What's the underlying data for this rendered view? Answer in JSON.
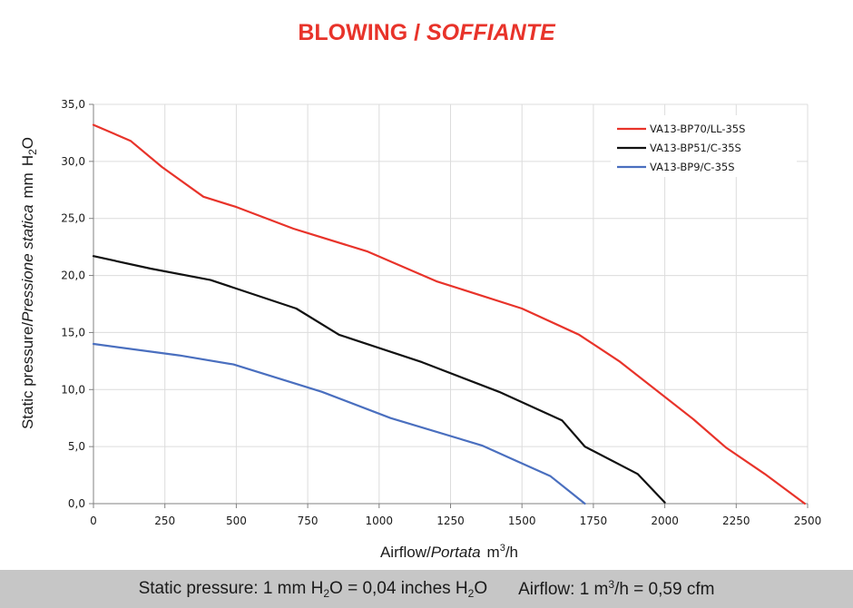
{
  "title": {
    "main": "BLOWING",
    "sep": " / ",
    "italic": "SOFFIANTE"
  },
  "colors": {
    "title": "#e8332a",
    "grid": "#dcdcdc",
    "axis": "#808080",
    "footer_bg": "#c6c6c6"
  },
  "y_axis": {
    "label_plain": "Static pressure",
    "label_sep": "/",
    "label_italic": "Pressione statica",
    "unit_a": "mm",
    "unit_b": "H",
    "unit_sub": "2",
    "unit_c": "O"
  },
  "x_axis": {
    "label_plain": "Airflow",
    "label_sep": "/",
    "label_italic": "Portata",
    "unit_a": "m",
    "unit_sup": "3",
    "unit_b": "/h"
  },
  "footer": {
    "p1": "Static pressure: 1 mm H",
    "s1": "2",
    "p2": "O = 0,04 inches H",
    "s2": "2",
    "p3": "O",
    "p4": "Airflow: 1 m",
    "s3": "3",
    "p5": "/h = 0,59 cfm"
  },
  "chart_data": {
    "type": "line",
    "title": "BLOWING / SOFFIANTE",
    "xlabel": "Airflow / Portata m3/h",
    "ylabel": "Static pressure / Pressione statica mm H2O",
    "xlim": [
      0,
      2500
    ],
    "ylim": [
      0,
      35
    ],
    "x_ticks": [
      0,
      250,
      500,
      750,
      1000,
      1250,
      1500,
      1750,
      2000,
      2250,
      2500
    ],
    "y_ticks": [
      0,
      5,
      10,
      15,
      20,
      25,
      30,
      35
    ],
    "x_tick_labels": [
      "0",
      "250",
      "500",
      "750",
      "1000",
      "1250",
      "1500",
      "1750",
      "2000",
      "2250",
      "2500"
    ],
    "y_tick_labels": [
      "0,0",
      "5,0",
      "10,0",
      "15,0",
      "20,0",
      "25,0",
      "30,0",
      "35,0"
    ],
    "grid": true,
    "legend_position": "top-right",
    "series": [
      {
        "name": "VA13-BP70/LL-35S",
        "color": "#e8332a",
        "points": [
          [
            0,
            33.2
          ],
          [
            130,
            31.8
          ],
          [
            240,
            29.5
          ],
          [
            385,
            26.9
          ],
          [
            500,
            26.0
          ],
          [
            700,
            24.1
          ],
          [
            960,
            22.1
          ],
          [
            1200,
            19.5
          ],
          [
            1500,
            17.1
          ],
          [
            1700,
            14.8
          ],
          [
            1840,
            12.5
          ],
          [
            2100,
            7.4
          ],
          [
            2215,
            4.9
          ],
          [
            2350,
            2.6
          ],
          [
            2490,
            0.0
          ]
        ]
      },
      {
        "name": "VA13-BP51/C-35S",
        "color": "#111111",
        "points": [
          [
            0,
            21.7
          ],
          [
            200,
            20.6
          ],
          [
            410,
            19.6
          ],
          [
            710,
            17.1
          ],
          [
            860,
            14.8
          ],
          [
            1150,
            12.4
          ],
          [
            1420,
            9.8
          ],
          [
            1640,
            7.3
          ],
          [
            1720,
            5.0
          ],
          [
            1905,
            2.6
          ],
          [
            2000,
            0.1
          ]
        ]
      },
      {
        "name": "VA13-BP9/C-35S",
        "color": "#4a6fbf",
        "points": [
          [
            0,
            14.0
          ],
          [
            300,
            13.0
          ],
          [
            490,
            12.2
          ],
          [
            800,
            9.8
          ],
          [
            1040,
            7.5
          ],
          [
            1360,
            5.1
          ],
          [
            1600,
            2.4
          ],
          [
            1720,
            0.0
          ]
        ]
      }
    ]
  }
}
